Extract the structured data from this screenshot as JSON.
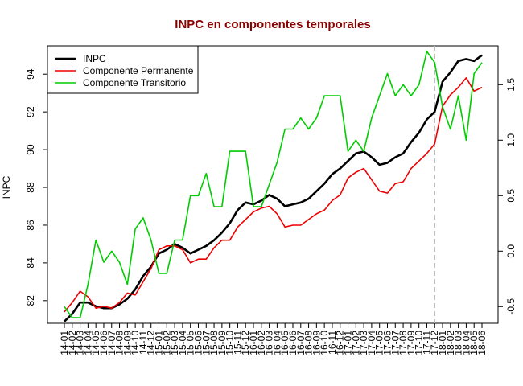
{
  "chart_data": {
    "type": "line",
    "title": "INPC en componentes temporales",
    "title_color": "#8b0000",
    "xlabel": "",
    "ylabel": "INPC",
    "ylim": [
      80.8,
      95.5
    ],
    "y2lim": [
      -0.65,
      1.85
    ],
    "yticks": [
      82,
      84,
      86,
      88,
      90,
      92,
      94
    ],
    "y2ticks": [
      -0.5,
      0.0,
      0.5,
      1.0,
      1.5
    ],
    "y2tick_labels": [
      "-0.5",
      "0.0",
      "0.5",
      "1.0",
      "1.5"
    ],
    "vline_index": 47,
    "vline_color": "#bebebe",
    "categories": [
      "14-01",
      "14-02",
      "14-03",
      "14-04",
      "14-05",
      "14-06",
      "14-07",
      "14-08",
      "14-09",
      "14-10",
      "14-11",
      "14-12",
      "15-01",
      "15-02",
      "15-03",
      "15-04",
      "15-05",
      "15-06",
      "15-07",
      "15-08",
      "15-09",
      "15-10",
      "15-11",
      "15-12",
      "16-01",
      "16-02",
      "16-03",
      "16-04",
      "16-05",
      "16-06",
      "16-07",
      "16-08",
      "16-09",
      "16-10",
      "16-11",
      "16-12",
      "17-01",
      "17-02",
      "17-03",
      "17-04",
      "17-05",
      "17-06",
      "17-07",
      "17-08",
      "17-09",
      "17-10",
      "17-11",
      "17-12",
      "18-01",
      "18-02",
      "18-03",
      "18-04",
      "18-05",
      "18-06"
    ],
    "legend_position": "top-left",
    "series": [
      {
        "name": "INPC",
        "color": "#000000",
        "axis": "left",
        "width": 2.6,
        "values": [
          80.9,
          81.3,
          81.9,
          81.9,
          81.7,
          81.6,
          81.6,
          81.8,
          82.1,
          82.6,
          83.3,
          83.8,
          84.5,
          84.7,
          85.0,
          84.8,
          84.5,
          84.7,
          84.9,
          85.2,
          85.6,
          86.1,
          86.8,
          87.2,
          87.1,
          87.3,
          87.6,
          87.4,
          87.0,
          87.1,
          87.2,
          87.4,
          87.8,
          88.2,
          88.7,
          89.0,
          89.4,
          89.8,
          89.9,
          89.6,
          89.2,
          89.3,
          89.6,
          89.8,
          90.4,
          90.9,
          91.6,
          92.0,
          93.6,
          94.1,
          94.7,
          94.8,
          94.7,
          95.0
        ]
      },
      {
        "name": "Componente Permanente",
        "color": "#ee0000",
        "axis": "left",
        "width": 1.6,
        "values": [
          81.4,
          81.9,
          82.5,
          82.2,
          81.6,
          81.7,
          81.6,
          81.9,
          82.4,
          82.3,
          83.0,
          83.7,
          84.7,
          84.9,
          84.9,
          84.7,
          84.0,
          84.2,
          84.2,
          84.8,
          85.2,
          85.2,
          85.9,
          86.3,
          86.7,
          86.9,
          87.0,
          86.6,
          85.9,
          86.0,
          86.0,
          86.3,
          86.6,
          86.8,
          87.3,
          87.6,
          88.5,
          88.8,
          89.0,
          88.4,
          87.8,
          87.7,
          88.2,
          88.3,
          89.0,
          89.4,
          89.8,
          90.3,
          92.3,
          92.9,
          93.3,
          93.8,
          93.1,
          93.3
        ]
      },
      {
        "name": "Componente Transitorio",
        "color": "#00cc00",
        "axis": "right",
        "width": 1.6,
        "values": [
          -0.5,
          -0.6,
          -0.6,
          -0.3,
          0.1,
          -0.1,
          0.0,
          -0.1,
          -0.3,
          0.2,
          0.3,
          0.1,
          -0.2,
          -0.2,
          0.1,
          0.1,
          0.5,
          0.5,
          0.7,
          0.4,
          0.4,
          0.9,
          0.9,
          0.9,
          0.4,
          0.4,
          0.6,
          0.8,
          1.1,
          1.1,
          1.2,
          1.1,
          1.2,
          1.4,
          1.4,
          1.4,
          0.9,
          1.0,
          0.9,
          1.2,
          1.4,
          1.6,
          1.4,
          1.5,
          1.4,
          1.5,
          1.8,
          1.7,
          1.3,
          1.1,
          1.4,
          1.0,
          1.6,
          1.7
        ]
      }
    ]
  }
}
